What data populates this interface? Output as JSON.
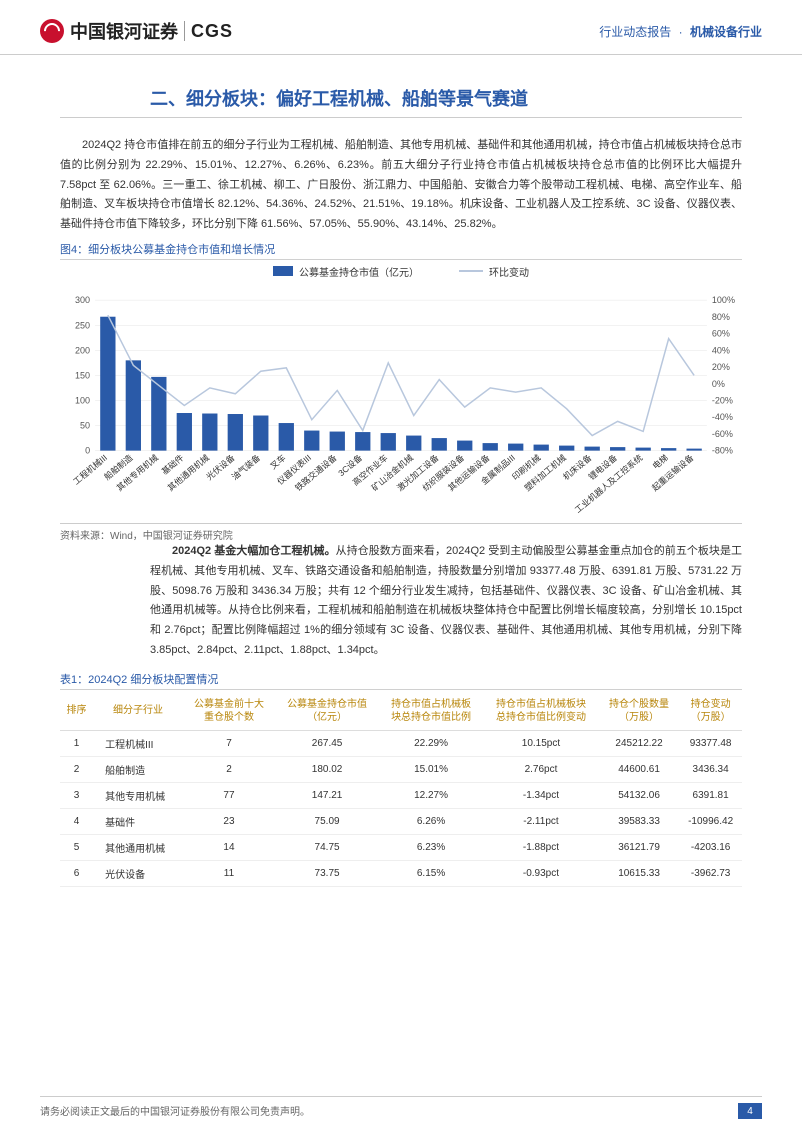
{
  "header": {
    "logo_cn": "中国银河证券",
    "logo_en": "CGS",
    "right_label": "行业动态报告",
    "right_category": "机械设备行业"
  },
  "section_title": "二、细分板块：偏好工程机械、船舶等景气赛道",
  "paragraph1": "2024Q2 持仓市值排在前五的细分子行业为工程机械、船舶制造、其他专用机械、基础件和其他通用机械，持仓市值占机械板块持仓总市值的比例分别为 22.29%、15.01%、12.27%、6.26%、6.23%。前五大细分子行业持仓市值占机械板块持仓总市值的比例环比大幅提升 7.58pct 至 62.06%。三一重工、徐工机械、柳工、广日股份、浙江鼎力、中国船舶、安徽合力等个股带动工程机械、电梯、高空作业车、船舶制造、叉车板块持仓市值增长 82.12%、54.36%、24.52%、21.51%、19.18%。机床设备、工业机器人及工控系统、3C 设备、仪器仪表、基础件持仓市值下降较多，环比分别下降 61.56%、57.05%、55.90%、43.14%、25.82%。",
  "fig4_caption": "图4：细分板块公募基金持仓市值和增长情况",
  "chart": {
    "type": "bar-line-combo",
    "legend_bar": "公募基金持仓市值（亿元）",
    "legend_line": "环比变动",
    "bar_color": "#2a5aa8",
    "line_color": "#b8c7dd",
    "grid_color": "#e5e5e5",
    "text_color": "#555555",
    "left_ylim": [
      0,
      300
    ],
    "left_ticks": [
      0,
      50,
      100,
      150,
      200,
      250,
      300
    ],
    "right_ylim": [
      -80,
      100
    ],
    "right_ticks": [
      -80,
      -60,
      -40,
      -20,
      0,
      20,
      40,
      60,
      80,
      100
    ],
    "categories": [
      "工程机械III",
      "船舶制造",
      "其他专用机械",
      "基础件",
      "其他通用机械",
      "光伏设备",
      "油气装备",
      "叉车",
      "仪器仪表III",
      "铁路交通设备",
      "3C设备",
      "高空作业车",
      "矿山冶金机械",
      "激光加工设备",
      "纺织服装设备",
      "其他运输设备",
      "金属制品III",
      "印刷机械",
      "塑料加工机械",
      "机床设备",
      "锂电设备",
      "工业机器人及工控系统",
      "电梯",
      "起重运输设备"
    ],
    "bar_values": [
      267,
      180,
      147,
      75,
      74,
      73,
      70,
      55,
      40,
      38,
      37,
      35,
      30,
      25,
      20,
      15,
      14,
      12,
      10,
      8,
      7,
      6,
      5,
      4
    ],
    "line_values": [
      82,
      22,
      -2,
      -26,
      -5,
      -12,
      15,
      19,
      -43,
      -8,
      -56,
      25,
      -38,
      5,
      -28,
      -5,
      -10,
      -5,
      -30,
      -62,
      -45,
      -57,
      54,
      10
    ]
  },
  "source": "资料来源：Wind，中国银河证券研究院",
  "paragraph2_bold": "2024Q2 基金大幅加仓工程机械。",
  "paragraph2": "从持仓股数方面来看，2024Q2 受到主动偏股型公募基金重点加仓的前五个板块是工程机械、其他专用机械、叉车、铁路交通设备和船舶制造，持股数量分别增加 93377.48 万股、6391.81 万股、5731.22 万股、5098.76 万股和 3436.34 万股；共有 12 个细分行业发生减持，包括基础件、仪器仪表、3C 设备、矿山冶金机械、其他通用机械等。从持仓比例来看，工程机械和船舶制造在机械板块整体持仓中配置比例增长幅度较高，分别增长 10.15pct 和 2.76pct；配置比例降幅超过 1%的细分领域有 3C 设备、仪器仪表、基础件、其他通用机械、其他专用机械，分别下降 3.85pct、2.84pct、2.11pct、1.88pct、1.34pct。",
  "table_caption": "表1：2024Q2 细分板块配置情况",
  "table": {
    "columns": [
      "排序",
      "细分子行业",
      "公募基金前十大\n重仓股个数",
      "公募基金持仓市值\n（亿元）",
      "持仓市值占机械板\n块总持仓市值比例",
      "持仓市值占机械板块\n总持仓市值比例变动",
      "持仓个股数量\n（万股）",
      "持仓变动\n（万股）"
    ],
    "rows": [
      [
        "1",
        "工程机械III",
        "7",
        "267.45",
        "22.29%",
        "10.15pct",
        "245212.22",
        "93377.48"
      ],
      [
        "2",
        "船舶制造",
        "2",
        "180.02",
        "15.01%",
        "2.76pct",
        "44600.61",
        "3436.34"
      ],
      [
        "3",
        "其他专用机械",
        "77",
        "147.21",
        "12.27%",
        "-1.34pct",
        "54132.06",
        "6391.81"
      ],
      [
        "4",
        "基础件",
        "23",
        "75.09",
        "6.26%",
        "-2.11pct",
        "39583.33",
        "-10996.42"
      ],
      [
        "5",
        "其他通用机械",
        "14",
        "74.75",
        "6.23%",
        "-1.88pct",
        "36121.79",
        "-4203.16"
      ],
      [
        "6",
        "光伏设备",
        "11",
        "73.75",
        "6.15%",
        "-0.93pct",
        "10615.33",
        "-3962.73"
      ]
    ]
  },
  "footer": {
    "disclaimer": "请务必阅读正文最后的中国银河证券股份有限公司免责声明。",
    "page": "4"
  }
}
